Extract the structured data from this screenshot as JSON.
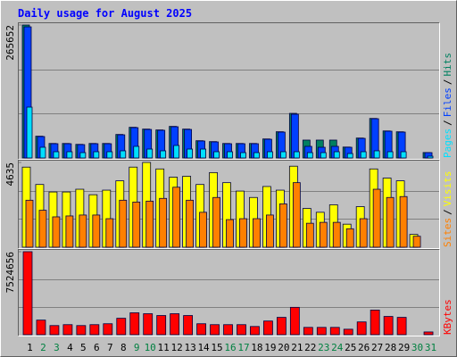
{
  "chart_data": [
    {
      "type": "bar",
      "title": "Daily usage for August 2025",
      "ylim": [
        0,
        265652
      ],
      "yticks": [
        265652
      ],
      "legend_separator": "/",
      "series": [
        {
          "name": "Hits",
          "color": "#008060",
          "values": [
            265652,
            43500,
            29000,
            29000,
            27200,
            29000,
            29000,
            47000,
            61300,
            57700,
            56000,
            63100,
            57700,
            34500,
            32700,
            29000,
            29000,
            29000,
            38000,
            52400,
            89100,
            35700,
            35700,
            35700,
            21800,
            39800,
            79000,
            54000,
            52300,
            0,
            10900
          ]
        },
        {
          "name": "Files",
          "color": "#0040ff",
          "values": [
            262000,
            42800,
            28500,
            28500,
            26700,
            28500,
            28500,
            46300,
            60600,
            57000,
            55300,
            62400,
            57000,
            33900,
            32100,
            28500,
            28500,
            28500,
            37400,
            51700,
            87400,
            23200,
            21400,
            23200,
            21400,
            39200,
            78400,
            53500,
            51700,
            0,
            10700
          ]
        },
        {
          "name": "Pages",
          "color": "#00e0ff",
          "values": [
            101600,
            21400,
            12500,
            12500,
            10700,
            12500,
            12500,
            14300,
            23200,
            17800,
            14300,
            25000,
            17800,
            17800,
            12500,
            12500,
            10700,
            10700,
            12500,
            12500,
            12500,
            10700,
            10700,
            12500,
            8900,
            12500,
            14300,
            12500,
            12500,
            0,
            3500
          ]
        }
      ]
    },
    {
      "type": "bar",
      "ylim": [
        0,
        4635
      ],
      "yticks": [
        4635
      ],
      "legend_separator": "/",
      "series": [
        {
          "name": "Visits",
          "color": "#ffff00",
          "values": [
            4380,
            3430,
            3020,
            3020,
            3170,
            2870,
            3120,
            3630,
            4380,
            4635,
            4280,
            3830,
            3880,
            3430,
            4080,
            3530,
            3070,
            2720,
            3320,
            3120,
            4430,
            2120,
            1910,
            2320,
            1260,
            2220,
            4280,
            3780,
            3630,
            700,
            0
          ]
        },
        {
          "name": "Sites",
          "color": "#ff8000",
          "values": [
            2570,
            2020,
            1660,
            1710,
            1760,
            1760,
            1560,
            2570,
            2470,
            2520,
            2670,
            3280,
            2570,
            1910,
            2720,
            1510,
            1560,
            1560,
            1760,
            2370,
            3530,
            1310,
            1360,
            1360,
            1010,
            1560,
            3170,
            2720,
            2770,
            600,
            0
          ]
        }
      ]
    },
    {
      "type": "bar",
      "ylim": [
        0,
        7524656
      ],
      "yticks": [
        7524656
      ],
      "categories": [
        "1",
        "2",
        "3",
        "4",
        "5",
        "6",
        "7",
        "8",
        "9",
        "10",
        "11",
        "12",
        "13",
        "14",
        "15",
        "16",
        "17",
        "18",
        "19",
        "20",
        "21",
        "22",
        "23",
        "24",
        "25",
        "26",
        "27",
        "28",
        "29",
        "30",
        "31"
      ],
      "category_colors": [
        "#000000",
        "#008040",
        "#008040",
        "#000000",
        "#000000",
        "#000000",
        "#000000",
        "#000000",
        "#008040",
        "#008040",
        "#000000",
        "#000000",
        "#000000",
        "#000000",
        "#000000",
        "#008040",
        "#008040",
        "#000000",
        "#000000",
        "#000000",
        "#000000",
        "#000000",
        "#008040",
        "#008040",
        "#000000",
        "#000000",
        "#000000",
        "#000000",
        "#000000",
        "#008040",
        "#008040"
      ],
      "series": [
        {
          "name": "KBytes",
          "color": "#ff0000",
          "values": [
            7524656,
            1323000,
            827000,
            910000,
            827000,
            910000,
            992000,
            1489000,
            1985000,
            1902000,
            1737000,
            1902000,
            1737000,
            992000,
            910000,
            910000,
            910000,
            744000,
            1240000,
            1571000,
            2481000,
            662000,
            662000,
            662000,
            496000,
            1158000,
            2233000,
            1654000,
            1571000,
            0,
            248000
          ]
        }
      ]
    }
  ]
}
